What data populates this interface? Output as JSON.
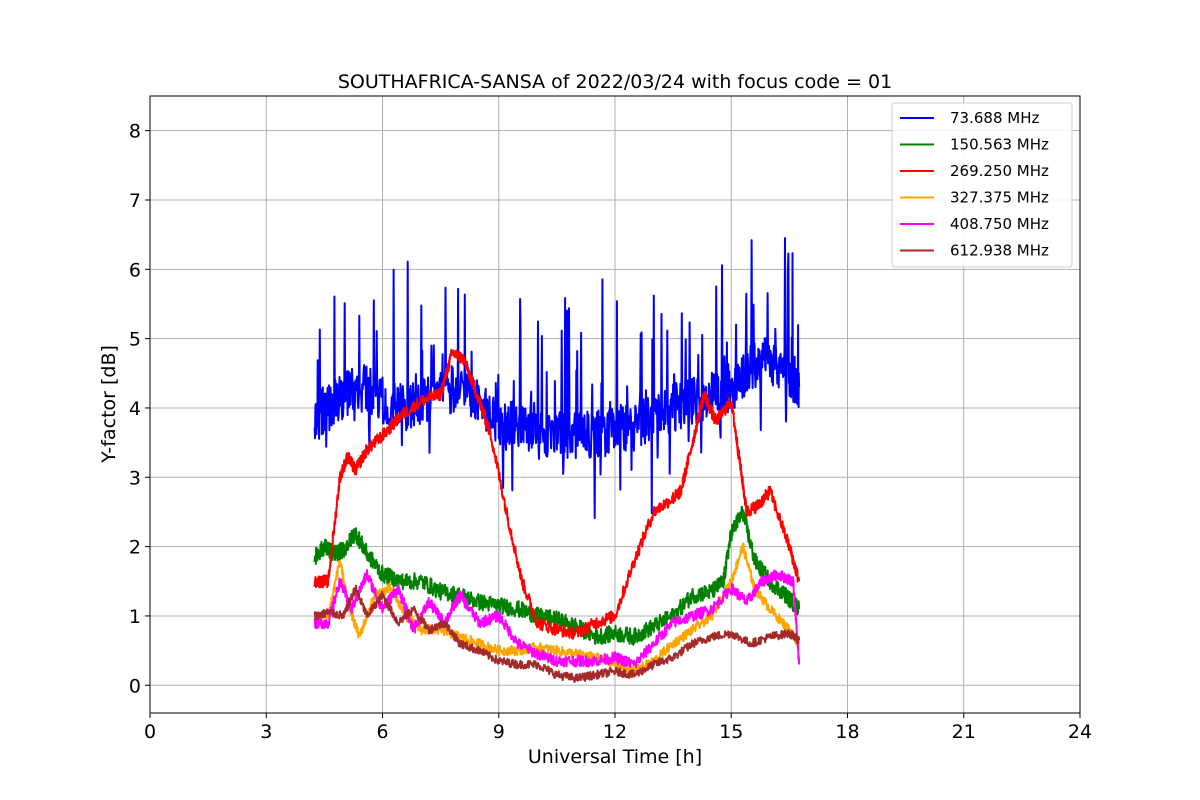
{
  "chart_data": {
    "type": "line",
    "title": "SOUTHAFRICA-SANSA of 2022/03/24 with focus code = 01",
    "xlabel": "Universal Time [h]",
    "ylabel": "Y-factor [dB]",
    "xlim": [
      0,
      24
    ],
    "ylim": [
      -0.4,
      8.5
    ],
    "xticks": [
      0,
      3,
      6,
      9,
      12,
      15,
      18,
      21,
      24
    ],
    "yticks": [
      0,
      1,
      2,
      3,
      4,
      5,
      6,
      7,
      8
    ],
    "grid": true,
    "legend_position": "top-right",
    "series": [
      {
        "name": " 73.688 MHz",
        "color": "#0000ff",
        "noise": 0.35,
        "spikes": true,
        "x": [
          4.25,
          4.6,
          5.0,
          5.5,
          6.0,
          6.5,
          7.0,
          7.5,
          8.0,
          8.5,
          9.0,
          9.5,
          10.0,
          10.5,
          11.0,
          11.5,
          12.0,
          12.5,
          13.0,
          13.5,
          14.0,
          14.5,
          15.0,
          15.5,
          16.0,
          16.5,
          16.75
        ],
        "y": [
          3.9,
          4.0,
          4.2,
          4.3,
          4.1,
          4.0,
          4.1,
          4.2,
          4.3,
          4.1,
          3.7,
          3.8,
          3.6,
          3.6,
          3.6,
          3.6,
          3.7,
          3.7,
          3.9,
          4.0,
          4.1,
          4.2,
          4.3,
          4.6,
          4.7,
          4.5,
          4.3
        ]
      },
      {
        "name": "150.563 MHz",
        "color": "#008000",
        "noise": 0.12,
        "spikes": false,
        "x": [
          4.25,
          4.5,
          4.75,
          5.0,
          5.3,
          5.6,
          6.0,
          6.5,
          7.0,
          7.5,
          8.0,
          8.5,
          9.0,
          9.5,
          10.0,
          10.5,
          11.0,
          11.5,
          12.0,
          12.5,
          13.0,
          13.5,
          14.0,
          14.5,
          14.8,
          15.0,
          15.3,
          15.6,
          16.0,
          16.4,
          16.75
        ],
        "y": [
          1.85,
          2.0,
          1.9,
          1.95,
          2.2,
          1.9,
          1.6,
          1.5,
          1.5,
          1.35,
          1.3,
          1.2,
          1.15,
          1.1,
          1.0,
          0.95,
          0.85,
          0.7,
          0.75,
          0.7,
          0.85,
          1.0,
          1.3,
          1.35,
          1.5,
          2.2,
          2.5,
          1.8,
          1.5,
          1.3,
          1.1
        ]
      },
      {
        "name": "269.250 MHz",
        "color": "#ff0000",
        "noise": 0.09,
        "spikes": false,
        "x": [
          4.25,
          4.6,
          4.9,
          5.1,
          5.3,
          5.6,
          6.0,
          6.5,
          7.0,
          7.5,
          7.8,
          8.1,
          8.5,
          8.8,
          9.2,
          9.6,
          10.0,
          10.5,
          11.0,
          11.5,
          12.0,
          12.5,
          13.0,
          13.5,
          13.7,
          14.0,
          14.3,
          14.6,
          15.0,
          15.2,
          15.4,
          15.7,
          16.0,
          16.5,
          16.75
        ],
        "y": [
          1.5,
          1.5,
          3.0,
          3.3,
          3.1,
          3.4,
          3.6,
          3.9,
          4.1,
          4.2,
          4.8,
          4.7,
          4.1,
          3.6,
          2.5,
          1.5,
          0.9,
          0.8,
          0.75,
          0.9,
          1.0,
          1.8,
          2.5,
          2.7,
          2.8,
          3.5,
          4.2,
          3.8,
          4.1,
          3.3,
          2.5,
          2.6,
          2.8,
          2.0,
          1.5
        ]
      },
      {
        "name": "327.375 MHz",
        "color": "#ffa500",
        "noise": 0.07,
        "spikes": false,
        "x": [
          4.25,
          4.6,
          4.9,
          5.1,
          5.4,
          5.8,
          6.2,
          6.6,
          7.0,
          7.5,
          8.0,
          8.5,
          9.0,
          9.5,
          10.0,
          10.5,
          11.0,
          11.5,
          12.0,
          12.5,
          13.0,
          13.5,
          14.0,
          14.5,
          15.0,
          15.3,
          15.6,
          16.0,
          16.5,
          16.75
        ],
        "y": [
          0.95,
          1.0,
          1.8,
          1.2,
          0.7,
          1.3,
          1.4,
          1.0,
          0.8,
          0.8,
          0.7,
          0.6,
          0.5,
          0.5,
          0.55,
          0.5,
          0.45,
          0.4,
          0.3,
          0.2,
          0.35,
          0.6,
          0.8,
          1.0,
          1.5,
          2.0,
          1.4,
          1.1,
          0.8,
          0.6
        ]
      },
      {
        "name": "408.750 MHz",
        "color": "#ff00ff",
        "noise": 0.08,
        "spikes": false,
        "x": [
          4.25,
          4.6,
          4.9,
          5.2,
          5.6,
          6.0,
          6.4,
          6.8,
          7.2,
          7.6,
          8.0,
          8.5,
          9.0,
          9.5,
          10.0,
          10.5,
          11.0,
          11.5,
          12.0,
          12.5,
          13.0,
          13.5,
          14.0,
          14.5,
          15.0,
          15.4,
          15.8,
          16.2,
          16.6,
          16.75
        ],
        "y": [
          0.9,
          0.9,
          1.5,
          1.1,
          1.6,
          1.1,
          1.4,
          0.8,
          1.2,
          0.9,
          1.3,
          0.9,
          1.0,
          0.6,
          0.45,
          0.35,
          0.35,
          0.35,
          0.4,
          0.3,
          0.6,
          0.9,
          1.0,
          1.1,
          1.4,
          1.2,
          1.5,
          1.6,
          1.5,
          0.3
        ]
      },
      {
        "name": "612.938 MHz",
        "color": "#a52a2a",
        "noise": 0.06,
        "spikes": false,
        "x": [
          4.25,
          4.6,
          5.0,
          5.3,
          5.6,
          6.0,
          6.4,
          6.8,
          7.2,
          7.6,
          8.0,
          8.5,
          9.0,
          9.5,
          10.0,
          10.5,
          11.0,
          11.5,
          12.0,
          12.5,
          13.0,
          13.5,
          14.0,
          14.5,
          15.0,
          15.5,
          16.0,
          16.5,
          16.75
        ],
        "y": [
          1.0,
          1.05,
          1.0,
          1.4,
          1.0,
          1.3,
          0.9,
          1.1,
          0.8,
          0.9,
          0.6,
          0.5,
          0.35,
          0.3,
          0.3,
          0.15,
          0.1,
          0.15,
          0.2,
          0.15,
          0.3,
          0.4,
          0.6,
          0.7,
          0.75,
          0.6,
          0.7,
          0.75,
          0.65
        ]
      }
    ]
  }
}
